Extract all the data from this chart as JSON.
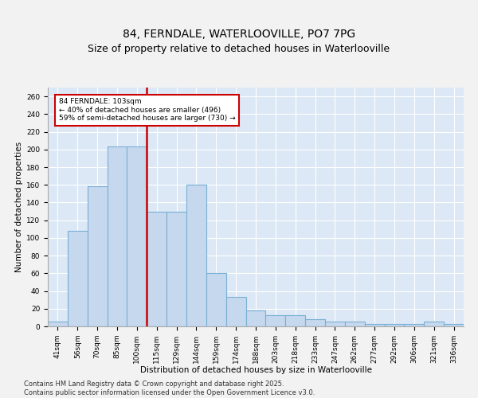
{
  "title": "84, FERNDALE, WATERLOOVILLE, PO7 7PG",
  "subtitle": "Size of property relative to detached houses in Waterlooville",
  "xlabel": "Distribution of detached houses by size in Waterlooville",
  "ylabel": "Number of detached properties",
  "categories": [
    "41sqm",
    "56sqm",
    "70sqm",
    "85sqm",
    "100sqm",
    "115sqm",
    "129sqm",
    "144sqm",
    "159sqm",
    "174sqm",
    "188sqm",
    "203sqm",
    "218sqm",
    "233sqm",
    "247sqm",
    "262sqm",
    "277sqm",
    "292sqm",
    "306sqm",
    "321sqm",
    "336sqm"
  ],
  "values": [
    5,
    108,
    158,
    203,
    203,
    130,
    130,
    160,
    60,
    33,
    18,
    13,
    13,
    8,
    5,
    5,
    3,
    3,
    3,
    5,
    3
  ],
  "bar_color": "#c5d8ee",
  "bar_edge_color": "#7aafd4",
  "vline_color": "#cc0000",
  "annotation_text": "84 FERNDALE: 103sqm\n← 40% of detached houses are smaller (496)\n59% of semi-detached houses are larger (730) →",
  "box_edge_color": "#cc0000",
  "footnote": "Contains HM Land Registry data © Crown copyright and database right 2025.\nContains public sector information licensed under the Open Government Licence v3.0.",
  "ylim": [
    0,
    270
  ],
  "yticks": [
    0,
    20,
    40,
    60,
    80,
    100,
    120,
    140,
    160,
    180,
    200,
    220,
    240,
    260
  ],
  "bg_color": "#dce8f5",
  "plot_bg_color": "#dce8f5",
  "fig_bg_color": "#f2f2f2",
  "grid_color": "#ffffff",
  "title_fontsize": 10,
  "label_fontsize": 7.5,
  "tick_fontsize": 6.5,
  "footnote_fontsize": 6,
  "vline_x_index": 4.5
}
